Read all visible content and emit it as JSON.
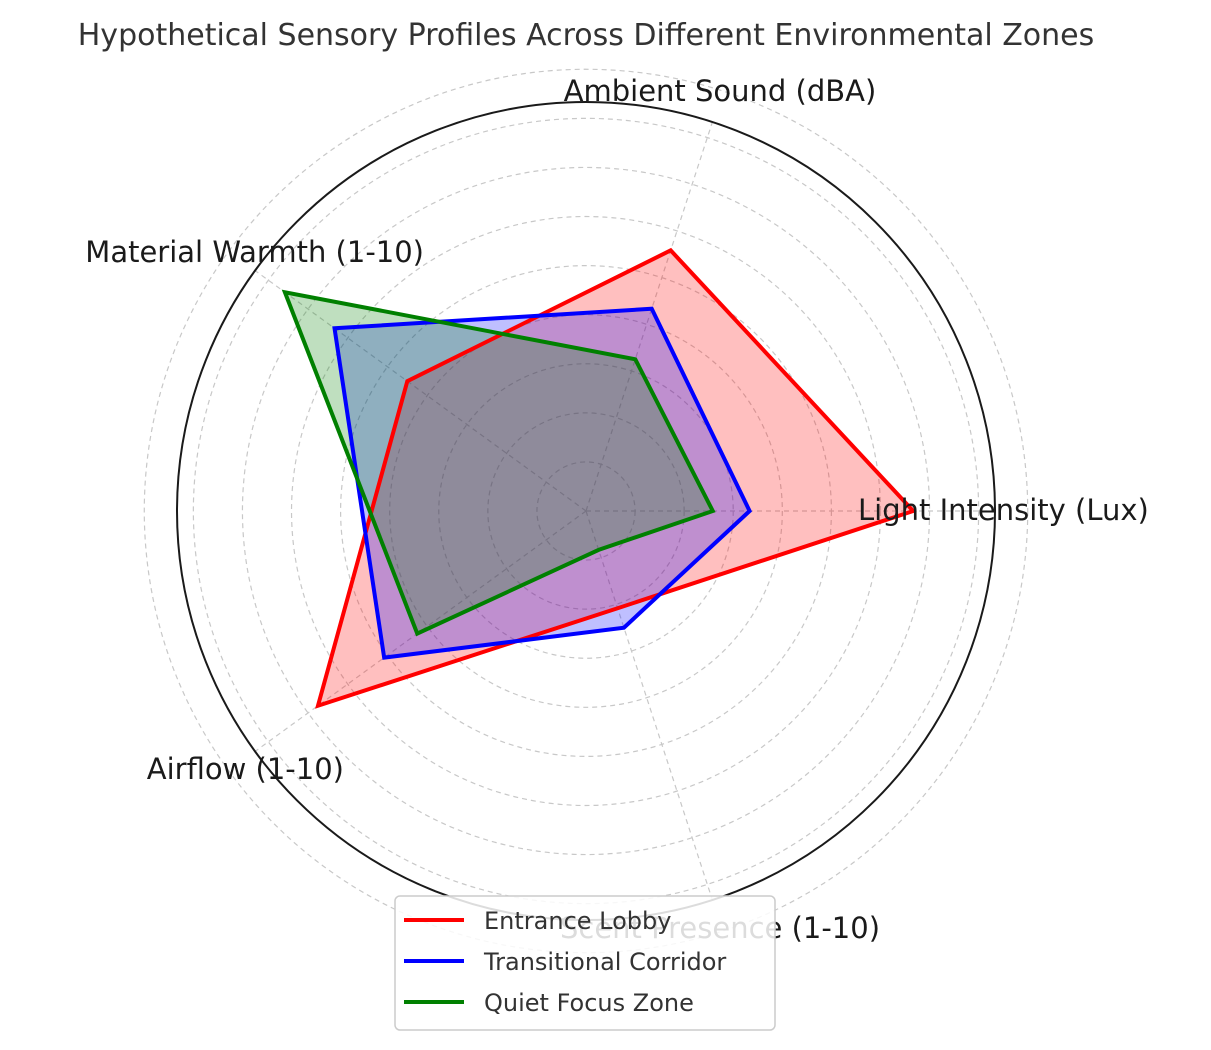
{
  "chart_data": {
    "type": "radar",
    "title": "Hypothetical Sensory Profiles Across Different Environmental Zones",
    "axes": [
      "Light Intensity (Lux)",
      "Ambient Sound (dBA)",
      "Material Warmth (1-10)",
      "Airflow (1-10)",
      "Scent Presence (1-10)"
    ],
    "rmax": 10,
    "grid": true,
    "ring_count": 9,
    "legend_position": "bottom",
    "series": [
      {
        "name": "Entrance Lobby",
        "values": [
          8,
          6.7,
          5.4,
          8.1,
          2.5
        ],
        "color": "#ff0000",
        "fill": "#ff0000",
        "fill_opacity": 0.25
      },
      {
        "name": "Transitional Corridor",
        "values": [
          4,
          5.2,
          7.6,
          6.1,
          3
        ],
        "color": "#0000ff",
        "fill": "#0000ff",
        "fill_opacity": 0.25
      },
      {
        "name": "Quiet Focus Zone",
        "values": [
          3.1,
          3.9,
          9.1,
          5.1,
          1
        ],
        "color": "#008000",
        "fill": "#008000",
        "fill_opacity": 0.25
      }
    ]
  }
}
